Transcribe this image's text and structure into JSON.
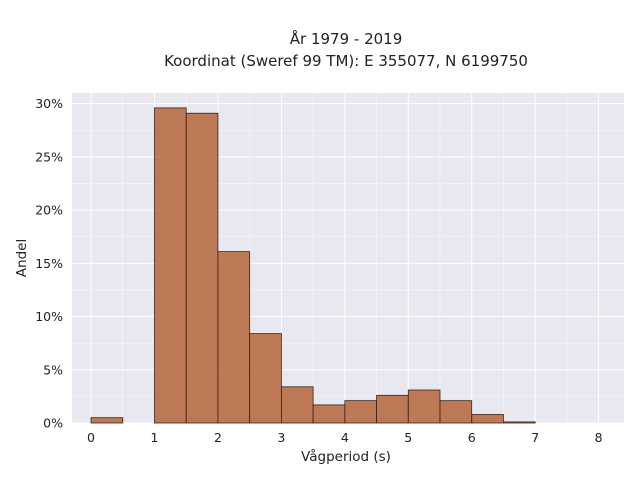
{
  "chart_data": {
    "type": "bar",
    "title": [
      "År 1979 - 2019",
      "Koordinat (Sweref 99 TM): E 355077, N 6199750"
    ],
    "xlabel": "Vågperiod (s)",
    "ylabel": "Andel",
    "xlim": [
      -0.3,
      8.4
    ],
    "ylim": [
      0,
      31
    ],
    "x_ticks": [
      0,
      1,
      2,
      3,
      4,
      5,
      6,
      7,
      8
    ],
    "x_tick_labels": [
      "0",
      "1",
      "2",
      "3",
      "4",
      "5",
      "6",
      "7",
      "8"
    ],
    "y_ticks": [
      0,
      5,
      10,
      15,
      20,
      25,
      30
    ],
    "y_tick_labels": [
      "0%",
      "5%",
      "10%",
      "15%",
      "20%",
      "25%",
      "30%"
    ],
    "grid": true,
    "bin_width": 0.5,
    "bins": [
      {
        "x0": 0.0,
        "value": 0.5
      },
      {
        "x0": 0.5,
        "value": 0.0
      },
      {
        "x0": 1.0,
        "value": 29.6
      },
      {
        "x0": 1.5,
        "value": 29.1
      },
      {
        "x0": 2.0,
        "value": 16.1
      },
      {
        "x0": 2.5,
        "value": 8.4
      },
      {
        "x0": 3.0,
        "value": 3.4
      },
      {
        "x0": 3.5,
        "value": 1.7
      },
      {
        "x0": 4.0,
        "value": 2.1
      },
      {
        "x0": 4.5,
        "value": 2.6
      },
      {
        "x0": 5.0,
        "value": 3.1
      },
      {
        "x0": 5.5,
        "value": 2.1
      },
      {
        "x0": 6.0,
        "value": 0.8
      },
      {
        "x0": 6.5,
        "value": 0.1
      }
    ],
    "colors": {
      "bar_fill": "#b5653a",
      "bar_edge": "#3b2418",
      "plot_background": "#e8e8f0",
      "grid": "#ffffff"
    }
  }
}
